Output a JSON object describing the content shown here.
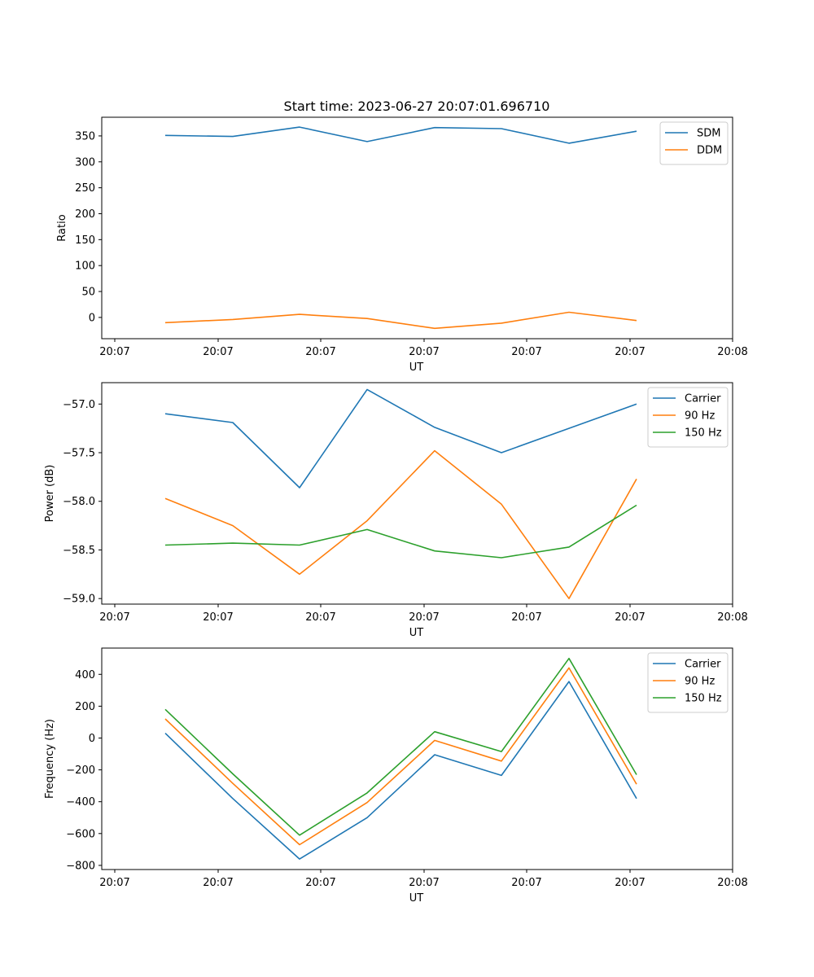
{
  "title": "Start time: 2023-06-27 20:07:01.696710",
  "colors": {
    "blue": "#1f77b4",
    "orange": "#ff7f0e",
    "green": "#2ca02c"
  },
  "chart_data": [
    {
      "type": "line",
      "xlabel": "UT",
      "ylabel": "Ratio",
      "x_tick_labels": [
        "20:07",
        "20:07",
        "20:07",
        "20:07",
        "20:07",
        "20:07",
        "20:08"
      ],
      "y_ticks": [
        0,
        50,
        100,
        150,
        200,
        250,
        300,
        350
      ],
      "y_tick_labels": [
        "0",
        "50",
        "100",
        "150",
        "200",
        "250",
        "300",
        "350"
      ],
      "ylim": [
        -41,
        386
      ],
      "legend_position": "upper-right",
      "grid": false,
      "series": [
        {
          "name": "SDM",
          "color": "#1f77b4",
          "values": [
            351,
            349,
            367,
            339,
            366,
            364,
            336,
            359
          ]
        },
        {
          "name": "DDM",
          "color": "#ff7f0e",
          "values": [
            -10,
            -4,
            6,
            -2,
            -21,
            -11,
            10,
            -6
          ]
        }
      ]
    },
    {
      "type": "line",
      "xlabel": "UT",
      "ylabel": "Power (dB)",
      "x_tick_labels": [
        "20:07",
        "20:07",
        "20:07",
        "20:07",
        "20:07",
        "20:07",
        "20:08"
      ],
      "y_ticks": [
        -59.0,
        -58.5,
        -58.0,
        -57.5,
        -57.0
      ],
      "y_tick_labels": [
        "−59.0",
        "−58.5",
        "−58.0",
        "−57.5",
        "−57.0"
      ],
      "ylim": [
        -59.057,
        -56.78
      ],
      "legend_position": "upper-right",
      "grid": false,
      "series": [
        {
          "name": "Carrier",
          "color": "#1f77b4",
          "values": [
            -57.1,
            -57.19,
            -57.86,
            -56.85,
            -57.24,
            -57.5,
            -57.25,
            -57.0
          ]
        },
        {
          "name": "90 Hz",
          "color": "#ff7f0e",
          "values": [
            -57.97,
            -58.25,
            -58.75,
            -58.2,
            -57.48,
            -58.03,
            -59.0,
            -57.77
          ]
        },
        {
          "name": "150 Hz",
          "color": "#2ca02c",
          "values": [
            -58.45,
            -58.43,
            -58.45,
            -58.29,
            -58.51,
            -58.58,
            -58.47,
            -58.04
          ]
        }
      ]
    },
    {
      "type": "line",
      "xlabel": "UT",
      "ylabel": "Frequency (Hz)",
      "x_tick_labels": [
        "20:07",
        "20:07",
        "20:07",
        "20:07",
        "20:07",
        "20:07",
        "20:08"
      ],
      "y_ticks": [
        -800,
        -600,
        -400,
        -200,
        0,
        200,
        400
      ],
      "y_tick_labels": [
        "−800",
        "−600",
        "−400",
        "−200",
        "0",
        "200",
        "400"
      ],
      "ylim": [
        -826,
        565
      ],
      "legend_position": "upper-right",
      "grid": false,
      "series": [
        {
          "name": "Carrier",
          "color": "#1f77b4",
          "values": [
            30,
            -380,
            -760,
            -500,
            -105,
            -235,
            355,
            -380
          ]
        },
        {
          "name": "90 Hz",
          "color": "#ff7f0e",
          "values": [
            120,
            -285,
            -670,
            -405,
            -15,
            -145,
            440,
            -290
          ]
        },
        {
          "name": "150 Hz",
          "color": "#2ca02c",
          "values": [
            180,
            -225,
            -610,
            -345,
            40,
            -85,
            500,
            -230
          ]
        }
      ]
    }
  ]
}
